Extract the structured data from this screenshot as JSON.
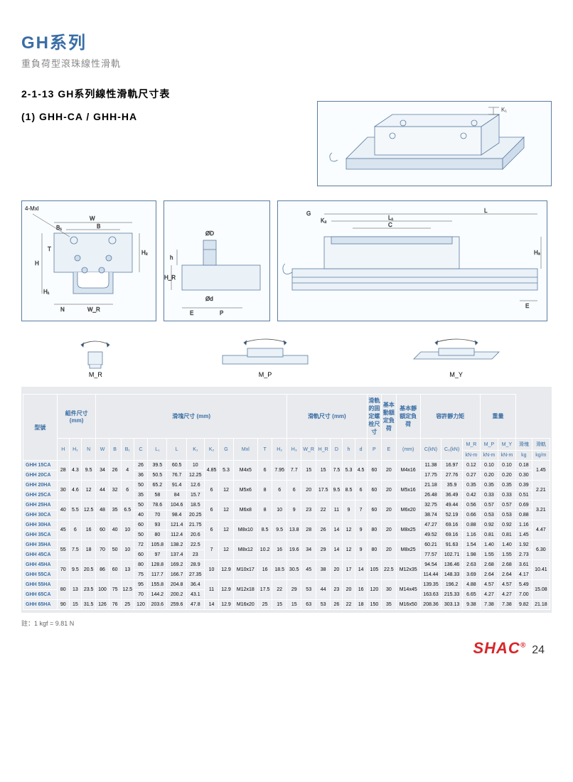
{
  "header": {
    "series": "GH系列",
    "subtitle": "重負荷型滾珠線性滑軌"
  },
  "section": {
    "title": "2-1-13 GH系列線性滑軌尺寸表",
    "subtitle": "(1) GHH-CA / GHH-HA"
  },
  "footnote": "註：1 kgf = 9.81 N",
  "brand": "SHAC",
  "page_num": "24",
  "diagram_labels": {
    "cross": "4-Mxl",
    "W": "W",
    "B": "B",
    "B1": "B₁",
    "H": "H",
    "H1": "H₁",
    "H2": "H₂",
    "T": "T",
    "N": "N",
    "WR": "W_R",
    "D": "ØD",
    "d": "Ød",
    "h": "h",
    "HR": "H_R",
    "E": "E",
    "P": "P",
    "K1": "K₁",
    "K2": "K₂",
    "G": "G",
    "L": "L",
    "L1": "L₁",
    "C": "C",
    "H3": "H₃",
    "MR": "M_R",
    "MP": "M_P",
    "MY": "M_Y"
  },
  "table": {
    "groups": [
      {
        "label": "型號",
        "span": 1
      },
      {
        "label": "組件尺寸 (mm)",
        "span": 3
      },
      {
        "label": "滑塊尺寸 (mm)",
        "span": 12
      },
      {
        "label": "滑軌尺寸 (mm)",
        "span": 6
      },
      {
        "label": "滑軌的固定螺栓尺寸",
        "span": 1
      },
      {
        "label": "基本動額定負荷",
        "span": 1
      },
      {
        "label": "基本靜額定負荷",
        "span": 1
      },
      {
        "label": "容許靜力矩",
        "span": 3
      },
      {
        "label": "重量",
        "span": 2
      }
    ],
    "sub1": [
      "",
      "H",
      "H₁",
      "N",
      "W",
      "B",
      "B₁",
      "C",
      "L₁",
      "L",
      "K₁",
      "K₂",
      "G",
      "Mxl",
      "T",
      "H₂",
      "H₃",
      "W_R",
      "H_R",
      "D",
      "h",
      "d",
      "P",
      "E",
      "(mm)",
      "C(kN)",
      "C₀(kN)",
      "M_R",
      "M_P",
      "M_Y",
      "滑塊",
      "滑軌"
    ],
    "sub2": [
      "",
      "",
      "",
      "",
      "",
      "",
      "",
      "",
      "",
      "",
      "",
      "",
      "",
      "",
      "",
      "",
      "",
      "",
      "",
      "",
      "",
      "",
      "",
      "",
      "",
      "",
      "",
      "kN-m",
      "kN-m",
      "kN-m",
      "kg",
      "kg/m"
    ],
    "rows": [
      [
        "GHH 15CA",
        "28",
        "4.3",
        "9.5",
        "34",
        "26",
        "4",
        "26",
        "39.5",
        "60.5",
        "10",
        "4.85",
        "5.3",
        "M4x5",
        "6",
        "7.95",
        "7.7",
        "15",
        "15",
        "7.5",
        "5.3",
        "4.5",
        "60",
        "20",
        "M4x16",
        "11.38",
        "16.97",
        "0.12",
        "0.10",
        "0.10",
        "0.18",
        "1.45"
      ],
      [
        "GHH 20CA",
        "",
        "",
        "",
        "",
        "",
        "",
        "36",
        "50.5",
        "76.7",
        "12.25",
        "",
        "",
        "",
        "",
        "",
        "",
        "",
        "",
        "",
        "",
        "",
        "",
        "",
        "",
        "17.75",
        "27.76",
        "0.27",
        "0.20",
        "0.20",
        "0.30",
        ""
      ],
      [
        "GHH 20HA",
        "30",
        "4.6",
        "12",
        "44",
        "32",
        "6",
        "50",
        "65.2",
        "91.4",
        "12.6",
        "6",
        "12",
        "M5x6",
        "8",
        "6",
        "6",
        "20",
        "17.5",
        "9.5",
        "8.5",
        "6",
        "60",
        "20",
        "M5x16",
        "21.18",
        "35.9",
        "0.35",
        "0.35",
        "0.35",
        "0.39",
        "2.21"
      ],
      [
        "GHH 25CA",
        "",
        "",
        "",
        "",
        "",
        "",
        "35",
        "58",
        "84",
        "15.7",
        "",
        "",
        "",
        "",
        "",
        "",
        "",
        "",
        "",
        "",
        "",
        "",
        "",
        "",
        "26.48",
        "36.49",
        "0.42",
        "0.33",
        "0.33",
        "0.51",
        ""
      ],
      [
        "GHH 25HA",
        "40",
        "5.5",
        "12.5",
        "48",
        "35",
        "6.5",
        "50",
        "78.6",
        "104.6",
        "18.5",
        "6",
        "12",
        "M6x8",
        "8",
        "10",
        "9",
        "23",
        "22",
        "11",
        "9",
        "7",
        "60",
        "20",
        "M6x20",
        "32.75",
        "49.44",
        "0.56",
        "0.57",
        "0.57",
        "0.69",
        "3.21"
      ],
      [
        "GHH 30CA",
        "",
        "",
        "",
        "",
        "",
        "",
        "40",
        "70",
        "98.4",
        "20.25",
        "",
        "",
        "",
        "",
        "",
        "",
        "",
        "",
        "",
        "",
        "",
        "",
        "",
        "",
        "38.74",
        "52.19",
        "0.66",
        "0.53",
        "0.53",
        "0.88",
        ""
      ],
      [
        "GHH 30HA",
        "45",
        "6",
        "16",
        "60",
        "40",
        "10",
        "60",
        "93",
        "121.4",
        "21.75",
        "6",
        "12",
        "M8x10",
        "8.5",
        "9.5",
        "13.8",
        "28",
        "26",
        "14",
        "12",
        "9",
        "80",
        "20",
        "M8x25",
        "47.27",
        "69.16",
        "0.88",
        "0.92",
        "0.92",
        "1.16",
        "4.47"
      ],
      [
        "GHH 35CA",
        "",
        "",
        "",
        "",
        "",
        "",
        "50",
        "80",
        "112.4",
        "20.6",
        "",
        "",
        "",
        "",
        "",
        "",
        "",
        "",
        "",
        "",
        "",
        "",
        "",
        "",
        "49.52",
        "69.16",
        "1.16",
        "0.81",
        "0.81",
        "1.45",
        ""
      ],
      [
        "GHH 35HA",
        "55",
        "7.5",
        "18",
        "70",
        "50",
        "10",
        "72",
        "105.8",
        "138.2",
        "22.5",
        "7",
        "12",
        "M8x12",
        "10.2",
        "16",
        "19.6",
        "34",
        "29",
        "14",
        "12",
        "9",
        "80",
        "20",
        "M8x25",
        "60.21",
        "91.63",
        "1.54",
        "1.40",
        "1.40",
        "1.92",
        "6.30"
      ],
      [
        "GHH 45CA",
        "",
        "",
        "",
        "",
        "",
        "",
        "60",
        "97",
        "137.4",
        "23",
        "",
        "",
        "",
        "",
        "",
        "",
        "",
        "",
        "",
        "",
        "",
        "",
        "",
        "",
        "77.57",
        "102.71",
        "1.98",
        "1.55",
        "1.55",
        "2.73",
        ""
      ],
      [
        "GHH 45HA",
        "70",
        "9.5",
        "20.5",
        "86",
        "60",
        "13",
        "80",
        "128.8",
        "169.2",
        "28.9",
        "10",
        "12.9",
        "M10x17",
        "16",
        "18.5",
        "30.5",
        "45",
        "38",
        "20",
        "17",
        "14",
        "105",
        "22.5",
        "M12x35",
        "94.54",
        "136.46",
        "2.63",
        "2.68",
        "2.68",
        "3.61",
        "10.41"
      ],
      [
        "GHH 55CA",
        "",
        "",
        "",
        "",
        "",
        "",
        "75",
        "117.7",
        "166.7",
        "27.35",
        "",
        "",
        "",
        "",
        "",
        "",
        "",
        "",
        "",
        "",
        "",
        "",
        "",
        "",
        "114.44",
        "148.33",
        "3.69",
        "2.64",
        "2.64",
        "4.17",
        ""
      ],
      [
        "GHH 55HA",
        "80",
        "13",
        "23.5",
        "100",
        "75",
        "12.5",
        "95",
        "155.8",
        "204.8",
        "36.4",
        "11",
        "12.9",
        "M12x18",
        "17.5",
        "22",
        "29",
        "53",
        "44",
        "23",
        "20",
        "16",
        "120",
        "30",
        "M14x45",
        "139.35",
        "196.2",
        "4.88",
        "4.57",
        "4.57",
        "5.49",
        "15.08"
      ],
      [
        "GHH 65CA",
        "",
        "",
        "",
        "",
        "",
        "",
        "70",
        "144.2",
        "200.2",
        "43.1",
        "",
        "",
        "",
        "",
        "",
        "",
        "",
        "",
        "",
        "",
        "",
        "",
        "",
        "",
        "163.63",
        "215.33",
        "6.65",
        "4.27",
        "4.27",
        "7.00",
        ""
      ],
      [
        "GHH 65HA",
        "90",
        "15",
        "31.5",
        "126",
        "76",
        "25",
        "120",
        "203.6",
        "259.6",
        "47.8",
        "14",
        "12.9",
        "M16x20",
        "25",
        "15",
        "15",
        "63",
        "53",
        "26",
        "22",
        "18",
        "150",
        "35",
        "M16x50",
        "208.36",
        "303.13",
        "9.38",
        "7.38",
        "7.38",
        "9.82",
        "21.18"
      ]
    ],
    "merges": [
      {
        "col": 1,
        "rows": [
          1,
          2
        ],
        "startRow": 1
      },
      {
        "col": 1,
        "rows": [
          3,
          4
        ],
        "startRow": 3
      },
      {
        "col": 1,
        "rows": [
          5,
          6
        ],
        "startRow": 5
      },
      {
        "col": 1,
        "rows": [
          7,
          8
        ],
        "startRow": 7
      },
      {
        "col": 1,
        "rows": [
          9,
          10
        ],
        "startRow": 9
      },
      {
        "col": 1,
        "rows": [
          11,
          12
        ],
        "startRow": 11
      },
      {
        "col": 1,
        "rows": [
          13,
          14
        ],
        "startRow": 13
      }
    ],
    "colors": {
      "header_text": "#3a6ea5",
      "border": "#ffffff",
      "cell_bg": "#eceef1",
      "wrap_bg": "#e8eaed"
    }
  }
}
